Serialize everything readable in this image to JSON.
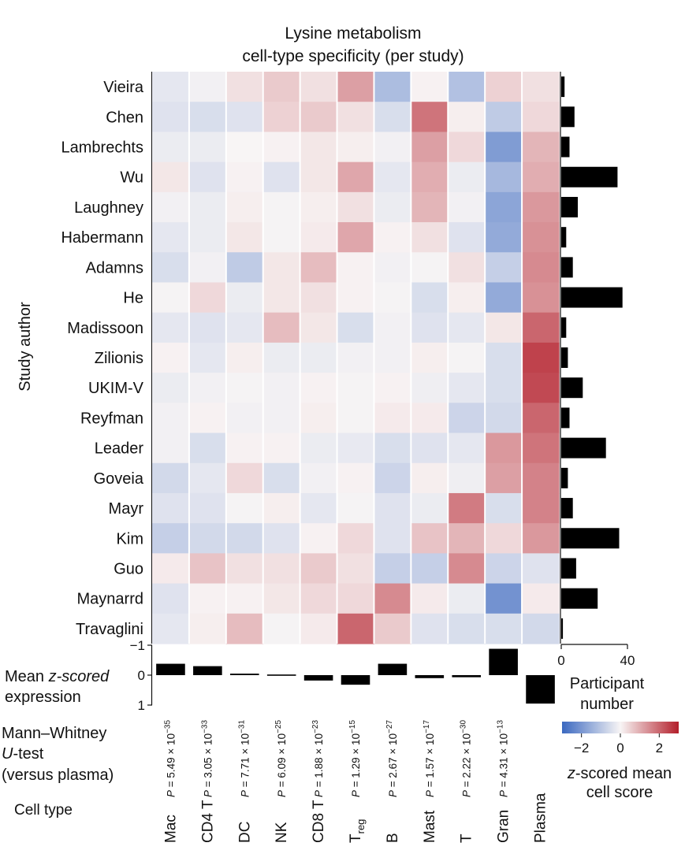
{
  "chart_data": {
    "type": "heatmap",
    "title": [
      "Lysine metabolism",
      "cell-type specificity (per study)"
    ],
    "ylabel": "Study author",
    "rows": [
      "Vieira",
      "Chen",
      "Lambrechts",
      "Wu",
      "Laughney",
      "Habermann",
      "Adamns",
      "He",
      "Madissoon",
      "Zilionis",
      "UKIM-V",
      "Reyfman",
      "Leader",
      "Goveia",
      "Mayr",
      "Kim",
      "Guo",
      "Maynarrd",
      "Travaglini"
    ],
    "columns": [
      "Mac",
      "CD4 T",
      "DC",
      "NK",
      "CD8 T",
      "T_reg",
      "B",
      "Mast",
      "T",
      "Gran",
      "Plasma"
    ],
    "column_labels": [
      {
        "main": "Mac"
      },
      {
        "main": "CD4 T"
      },
      {
        "main": "DC"
      },
      {
        "main": "NK"
      },
      {
        "main": "CD8 T"
      },
      {
        "main": "T",
        "sub": "reg"
      },
      {
        "main": "B"
      },
      {
        "main": "Mast"
      },
      {
        "main": "T"
      },
      {
        "main": "Gran"
      },
      {
        "main": "Plasma"
      }
    ],
    "z_scores": [
      [
        -0.3,
        -0.1,
        0.3,
        0.6,
        0.3,
        1.2,
        -1.2,
        0.05,
        -1.1,
        0.5,
        0.3
      ],
      [
        -0.4,
        -0.5,
        -0.4,
        0.5,
        0.6,
        0.3,
        -0.5,
        1.8,
        0.1,
        -0.9,
        0.4
      ],
      [
        -0.2,
        -0.2,
        0.0,
        0.05,
        0.2,
        0.1,
        -0.1,
        1.2,
        0.4,
        -1.9,
        0.9
      ],
      [
        0.2,
        -0.4,
        0.05,
        -0.4,
        0.2,
        1.1,
        -0.3,
        1.0,
        -0.2,
        -1.3,
        1.0
      ],
      [
        -0.1,
        -0.2,
        0.1,
        -0.05,
        0.1,
        0.3,
        -0.2,
        0.9,
        -0.1,
        -1.7,
        1.3
      ],
      [
        -0.3,
        -0.2,
        0.2,
        -0.05,
        0.15,
        1.1,
        0.05,
        0.3,
        -0.4,
        -1.6,
        1.4
      ],
      [
        -0.5,
        -0.1,
        -0.9,
        0.2,
        0.8,
        0.05,
        -0.1,
        -0.05,
        0.3,
        -0.8,
        1.5
      ],
      [
        -0.05,
        0.4,
        -0.2,
        0.2,
        0.3,
        0.05,
        -0.05,
        -0.5,
        0.1,
        -1.6,
        1.4
      ],
      [
        -0.3,
        -0.4,
        -0.3,
        0.8,
        0.2,
        -0.5,
        -0.1,
        -0.4,
        -0.3,
        0.2,
        2.0
      ],
      [
        0.05,
        -0.3,
        0.1,
        -0.2,
        -0.2,
        -0.1,
        -0.1,
        0.1,
        -0.05,
        -0.5,
        2.5
      ],
      [
        -0.2,
        -0.1,
        -0.05,
        -0.1,
        0.05,
        -0.05,
        0.05,
        -0.15,
        -0.3,
        -0.5,
        2.4
      ],
      [
        -0.1,
        0.05,
        -0.1,
        -0.1,
        0.1,
        -0.05,
        0.15,
        0.15,
        -0.7,
        -0.6,
        2.0
      ],
      [
        -0.1,
        -0.5,
        0.05,
        0.05,
        -0.2,
        -0.25,
        -0.5,
        -0.4,
        -0.3,
        1.3,
        1.8
      ],
      [
        -0.6,
        -0.3,
        0.4,
        -0.5,
        -0.1,
        0.05,
        -0.7,
        0.1,
        -0.15,
        1.2,
        1.6
      ],
      [
        -0.4,
        -0.4,
        -0.05,
        0.1,
        -0.3,
        -0.05,
        -0.4,
        -0.2,
        1.7,
        -0.5,
        1.6
      ],
      [
        -0.8,
        -0.6,
        -0.6,
        -0.4,
        0.05,
        0.4,
        -0.4,
        0.7,
        0.9,
        0.4,
        1.3
      ],
      [
        0.15,
        0.7,
        0.3,
        0.3,
        0.6,
        0.3,
        -0.8,
        -0.8,
        1.5,
        -0.7,
        -0.4
      ],
      [
        -0.4,
        0.05,
        0.05,
        0.2,
        0.4,
        0.4,
        1.5,
        0.15,
        -0.2,
        -2.1,
        0.15
      ],
      [
        -0.3,
        0.1,
        0.8,
        -0.05,
        0.15,
        2.0,
        0.6,
        -0.4,
        -0.5,
        -0.5,
        -0.6
      ]
    ],
    "participant_number": [
      2,
      8,
      5,
      34,
      10,
      3,
      7,
      37,
      3,
      4,
      13,
      5,
      27,
      4,
      7,
      35,
      9,
      22,
      1
    ],
    "participant_axis": {
      "min": 0,
      "max": 40,
      "ticks": [
        "0",
        "40"
      ],
      "title": [
        "Participant",
        "number"
      ]
    },
    "mean_z_scored_expression": [
      -0.38,
      -0.3,
      -0.05,
      0.0,
      0.18,
      0.32,
      -0.38,
      0.1,
      0.07,
      -0.88,
      0.95
    ],
    "mean_axis": {
      "ticks": [
        "−1",
        "0",
        "1"
      ],
      "label": [
        "Mean",
        "z-scored",
        "expression"
      ]
    },
    "p_values": [
      {
        "mant": "5.49",
        "exp": "−35"
      },
      {
        "mant": "3.05",
        "exp": "−33"
      },
      {
        "mant": "7.71",
        "exp": "−31"
      },
      {
        "mant": "6.09",
        "exp": "−25"
      },
      {
        "mant": "1.88",
        "exp": "−23"
      },
      {
        "mant": "1.29",
        "exp": "−15"
      },
      {
        "mant": "2.67",
        "exp": "−27"
      },
      {
        "mant": "1.57",
        "exp": "−17"
      },
      {
        "mant": "2.22",
        "exp": "−30"
      },
      {
        "mant": "4.31",
        "exp": "−13"
      }
    ],
    "test_label": [
      "Mann–Whitney",
      "U-test",
      "(versus plasma)"
    ],
    "cell_type_label": "Cell type",
    "colorbar": {
      "min": -3,
      "max": 3,
      "ticks": [
        "−2",
        "0",
        "2"
      ],
      "title": [
        "z-scored mean",
        "cell score"
      ],
      "colors": {
        "negative": "#3a68c0",
        "neutral": "#f8f5f5",
        "positive": "#b31e2a"
      }
    }
  }
}
